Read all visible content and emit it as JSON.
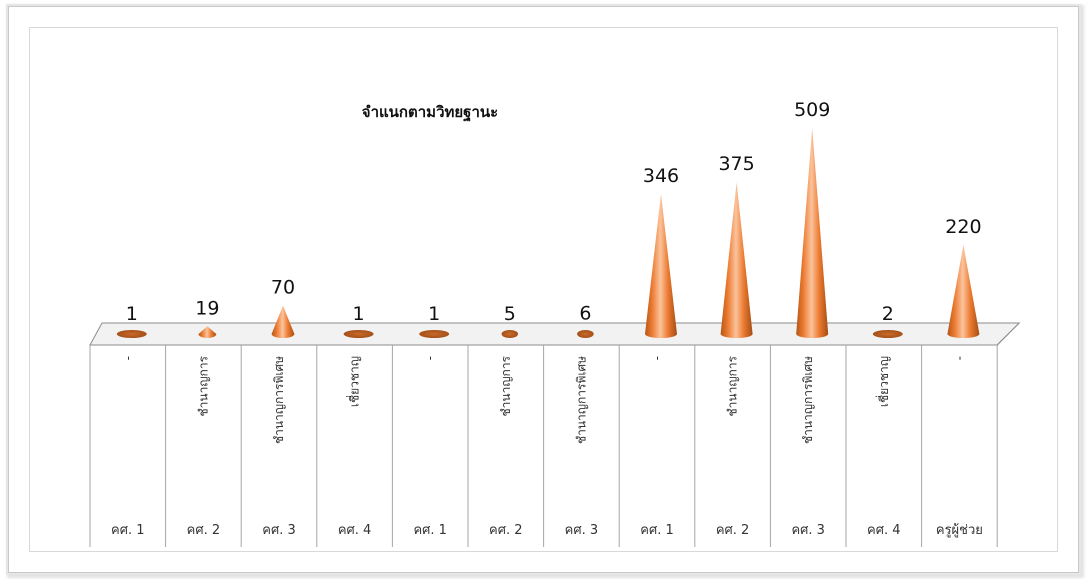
{
  "chart_data": {
    "type": "bar",
    "shape": "cone-3d",
    "title": "จำแนกตามวิทยฐานะ",
    "xlabel": "",
    "ylabel": "",
    "ylim": [
      0,
      509
    ],
    "grid": false,
    "legend": "none",
    "bar_color": "#ed7d31",
    "categories": [
      {
        "top": "-",
        "bottom": "คศ. 1"
      },
      {
        "top": "ชำนาญการ",
        "bottom": "คศ. 2"
      },
      {
        "top": "ชำนาญการพิเศษ",
        "bottom": "คศ. 3"
      },
      {
        "top": "เชี่ยวชาญ",
        "bottom": "คศ. 4"
      },
      {
        "top": "-",
        "bottom": "คศ. 1"
      },
      {
        "top": "ชำนาญการ",
        "bottom": "คศ. 2"
      },
      {
        "top": "ชำนาญการพิเศษ",
        "bottom": "คศ. 3"
      },
      {
        "top": "-",
        "bottom": "คศ. 1"
      },
      {
        "top": "ชำนาญการ",
        "bottom": "คศ. 2"
      },
      {
        "top": "ชำนาญการพิเศษ",
        "bottom": "คศ. 3"
      },
      {
        "top": "เชี่ยวชาญ",
        "bottom": "คศ. 4"
      },
      {
        "top": "-",
        "bottom": "ครูผู้ช่วย"
      }
    ],
    "values": [
      1,
      19,
      70,
      1,
      1,
      5,
      6,
      346,
      375,
      509,
      2,
      220
    ]
  }
}
